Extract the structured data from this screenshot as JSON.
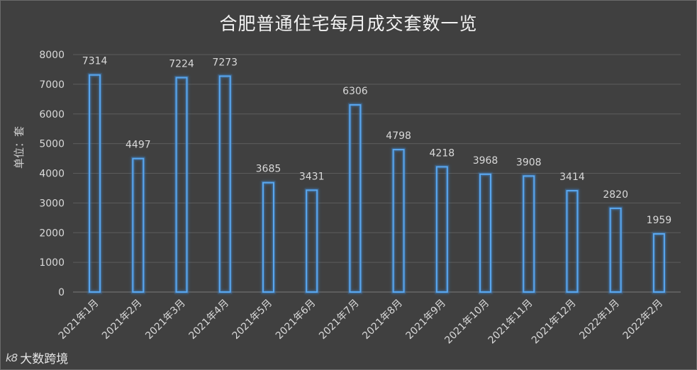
{
  "chart_data": {
    "type": "bar",
    "title": "合肥普通住宅每月成交套数一览",
    "ylabel": "单位：套",
    "xlabel": "",
    "ylim": [
      0,
      8000
    ],
    "yticks": [
      0,
      1000,
      2000,
      3000,
      4000,
      5000,
      6000,
      7000,
      8000
    ],
    "grid": true,
    "categories": [
      "2021年1月",
      "2021年2月",
      "2021年3月",
      "2021年4月",
      "2021年5月",
      "2021年6月",
      "2021年7月",
      "2021年8月",
      "2021年9月",
      "2021年10月",
      "2021年11月",
      "2021年12月",
      "2022年1月",
      "2022年2月"
    ],
    "values": [
      7314,
      4497,
      7224,
      7273,
      3685,
      3431,
      6306,
      4798,
      4218,
      3968,
      3908,
      3414,
      2820,
      1959
    ],
    "colors": {
      "background": "#404040",
      "bar_outline": "#5aa8f0",
      "bar_glow": "#3a7fc4",
      "grid": "#5c5c5c",
      "text": "#d9d9d9"
    }
  },
  "watermark": {
    "mark": "k8",
    "text": "大数跨境"
  }
}
